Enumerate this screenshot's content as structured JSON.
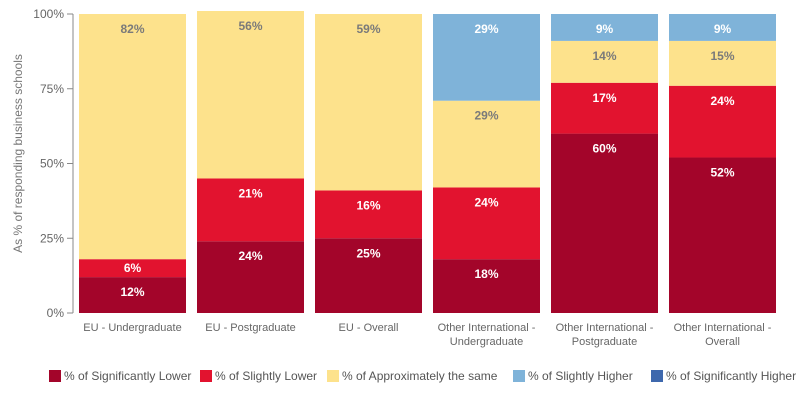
{
  "chart_data": {
    "type": "bar",
    "stacked": true,
    "ylabel": "As % of responding business schools",
    "ylim": [
      0,
      100
    ],
    "y_ticks": [
      "0%",
      "25%",
      "50%",
      "75%",
      "100%"
    ],
    "y_tick_values": [
      0,
      25,
      50,
      75,
      100
    ],
    "categories": [
      [
        "EU - Undergraduate"
      ],
      [
        "EU - Postgraduate"
      ],
      [
        "EU - Overall"
      ],
      [
        "Other International -",
        "Undergraduate"
      ],
      [
        "Other International -",
        "Postgraduate"
      ],
      [
        "Other International -",
        "Overall"
      ]
    ],
    "series": [
      {
        "name": "% of Significantly Lower",
        "color": "#a3052a",
        "label_color": "#ffffff",
        "values": [
          12,
          24,
          25,
          18,
          60,
          52
        ]
      },
      {
        "name": "% of Slightly Lower",
        "color": "#e2132f",
        "label_color": "#ffffff",
        "values": [
          6,
          21,
          16,
          24,
          17,
          24
        ]
      },
      {
        "name": "% of Approximately the same",
        "color": "#fde28c",
        "label_color": "#7a7a7a",
        "values": [
          82,
          56,
          59,
          29,
          14,
          15
        ]
      },
      {
        "name": "% of Slightly Higher",
        "color": "#7fb3d9",
        "label_color": "#ffffff",
        "values": [
          0,
          0,
          0,
          29,
          9,
          9
        ]
      },
      {
        "name": "% of Significantly Higher",
        "color": "#3e68ad",
        "label_color": "#ffffff",
        "values": [
          0,
          0,
          0,
          0,
          0,
          0
        ]
      }
    ],
    "grid": false,
    "legend_position": "bottom"
  }
}
